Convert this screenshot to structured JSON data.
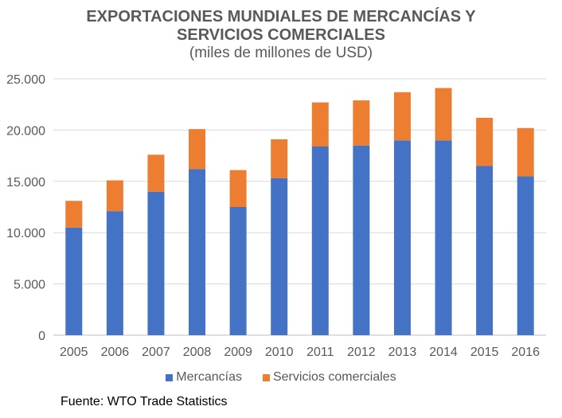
{
  "chart_data": {
    "type": "bar",
    "stacked": true,
    "title_lines": [
      "EXPORTACIONES MUNDIALES DE MERCANCÍAS Y",
      "SERVICIOS COMERCIALES"
    ],
    "subtitle": "(miles de millones de USD)",
    "categories": [
      "2005",
      "2006",
      "2007",
      "2008",
      "2009",
      "2010",
      "2011",
      "2012",
      "2013",
      "2014",
      "2015",
      "2016"
    ],
    "series": [
      {
        "name": "Mercancías",
        "color": "#4472C4",
        "values": [
          10500,
          12100,
          14000,
          16200,
          12500,
          15300,
          18400,
          18500,
          19000,
          19000,
          16500,
          15500
        ]
      },
      {
        "name": "Servicios comerciales",
        "color": "#ED7D31",
        "values": [
          2600,
          3000,
          3600,
          3900,
          3600,
          3800,
          4300,
          4400,
          4700,
          5100,
          4700,
          4700
        ]
      }
    ],
    "yticks": [
      "0",
      "5.000",
      "10.000",
      "15.000",
      "20.000",
      "25.000"
    ],
    "ylim": [
      0,
      25000
    ],
    "grid": true,
    "legend_position": "bottom",
    "source": "Fuente: WTO Trade Statistics"
  }
}
